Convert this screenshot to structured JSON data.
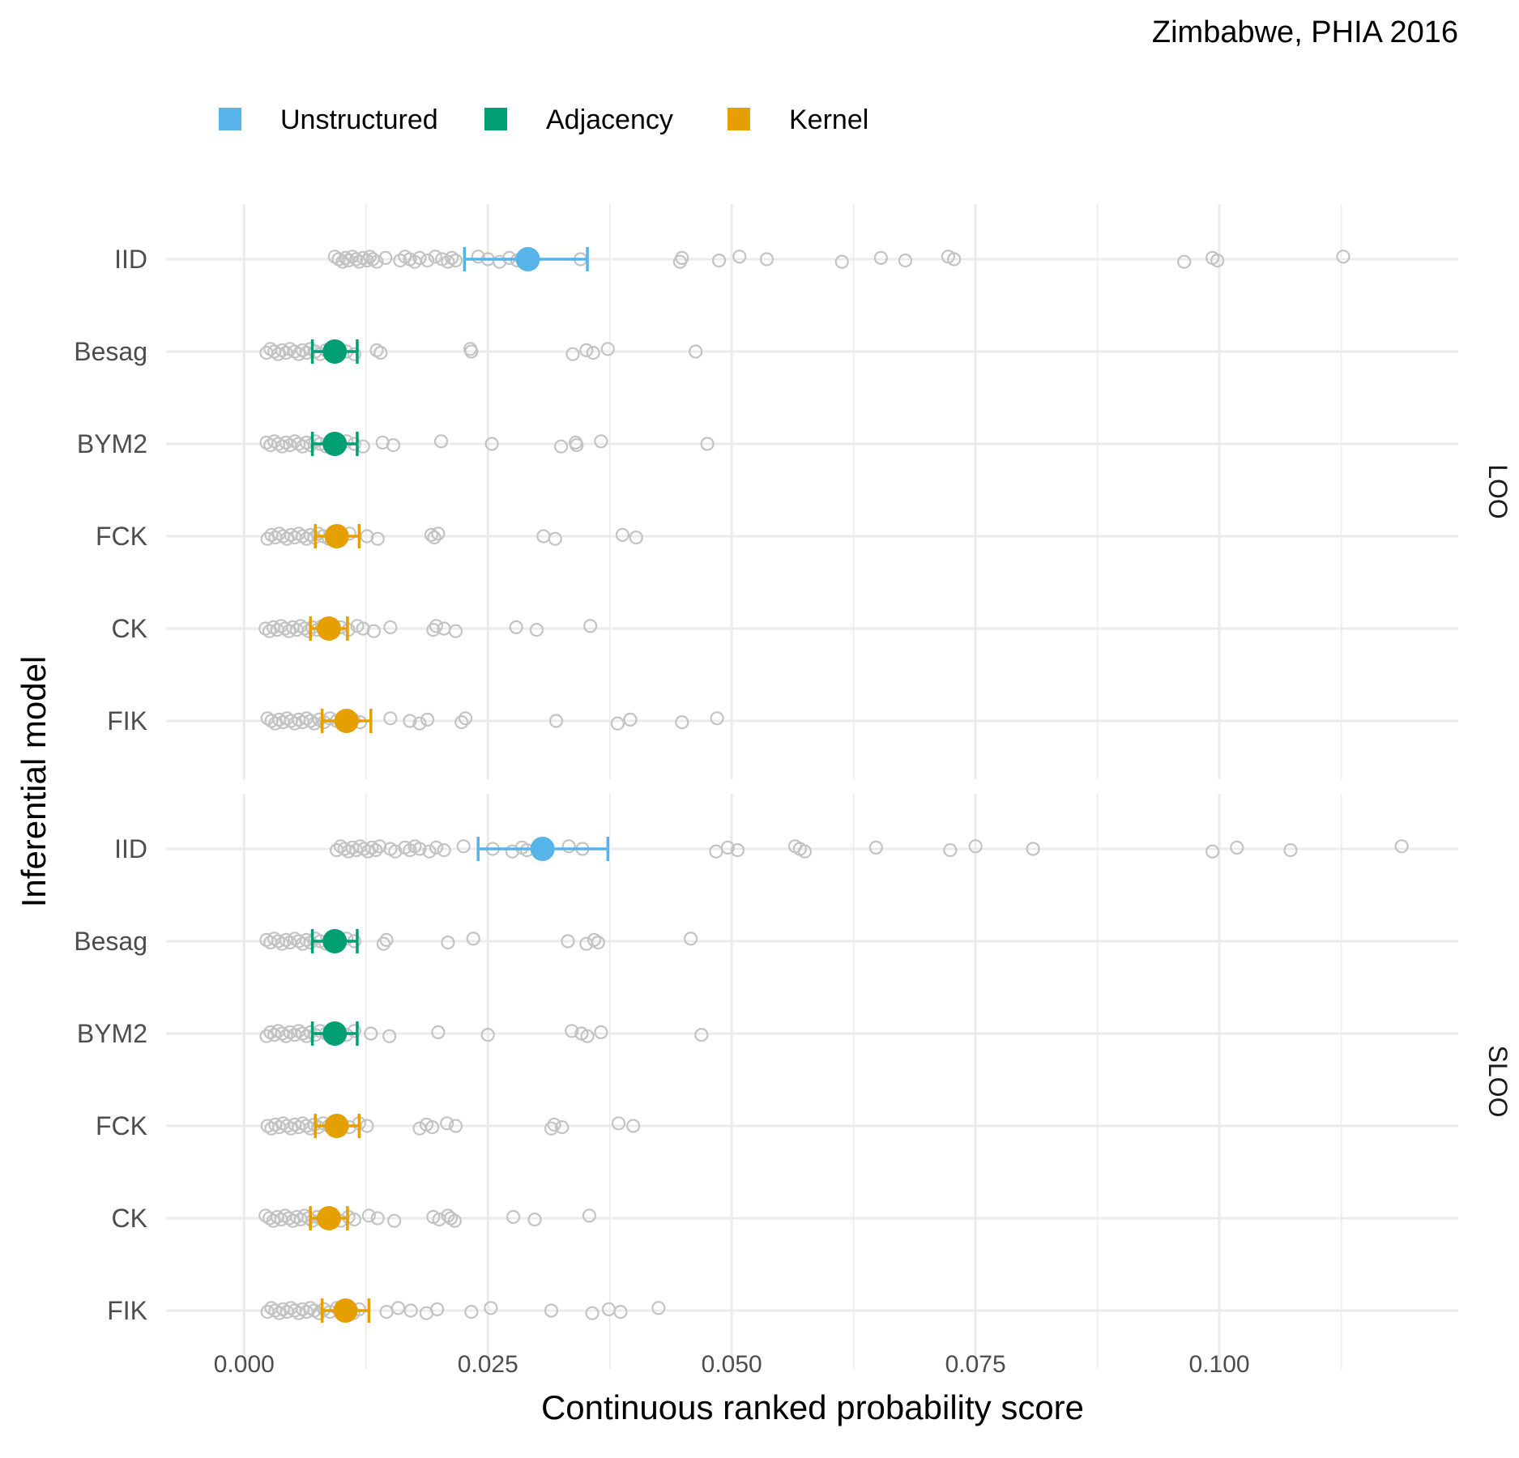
{
  "chart_data": {
    "type": "scatter",
    "title": "Zimbabwe, PHIA 2016",
    "xlabel": "Continuous ranked probability score",
    "ylabel": "Inferential model",
    "xlim": [
      -0.008,
      0.1245
    ],
    "x_ticks": [
      0.0,
      0.025,
      0.05,
      0.075,
      0.1
    ],
    "x_tick_labels": [
      "0.000",
      "0.025",
      "0.050",
      "0.075",
      "0.100"
    ],
    "categories": [
      "IID",
      "Besag",
      "BYM2",
      "FCK",
      "CK",
      "FIK"
    ],
    "panels": [
      "LOO",
      "SLOO"
    ],
    "grid": true,
    "legend_position": "top",
    "legend": [
      {
        "label": "Unstructured",
        "color": "#56B4E9"
      },
      {
        "label": "Adjacency",
        "color": "#009E73"
      },
      {
        "label": "Kernel",
        "color": "#E69F00"
      }
    ],
    "model_group": {
      "IID": 0,
      "Besag": 1,
      "BYM2": 1,
      "FCK": 2,
      "CK": 2,
      "FIK": 2
    },
    "point_color": "#c3c3c3",
    "series": [
      {
        "panel": "LOO",
        "model": "IID",
        "mean": 0.0291,
        "lower": 0.0226,
        "upper": 0.0352,
        "points": [
          0.0093,
          0.0097,
          0.0101,
          0.0104,
          0.0107,
          0.0111,
          0.0115,
          0.0118,
          0.0122,
          0.0126,
          0.0129,
          0.0132,
          0.0136,
          0.0145,
          0.016,
          0.0165,
          0.017,
          0.0175,
          0.018,
          0.0188,
          0.0196,
          0.0203,
          0.0209,
          0.0213,
          0.0217,
          0.024,
          0.025,
          0.0262,
          0.0272,
          0.028,
          0.029,
          0.0345,
          0.0447,
          0.0449,
          0.0487,
          0.0508,
          0.0536,
          0.0613,
          0.0653,
          0.0678,
          0.0722,
          0.0728,
          0.0964,
          0.0993,
          0.0998,
          0.1127
        ]
      },
      {
        "panel": "LOO",
        "model": "Besag",
        "mean": 0.0093,
        "lower": 0.007,
        "upper": 0.0116,
        "points": [
          0.0023,
          0.0027,
          0.0031,
          0.0035,
          0.0039,
          0.0043,
          0.0047,
          0.0052,
          0.0056,
          0.006,
          0.0064,
          0.0068,
          0.0073,
          0.0078,
          0.0084,
          0.009,
          0.0097,
          0.0105,
          0.0113,
          0.0136,
          0.014,
          0.0232,
          0.0233,
          0.0337,
          0.0351,
          0.0358,
          0.0373,
          0.0463
        ]
      },
      {
        "panel": "LOO",
        "model": "BYM2",
        "mean": 0.0093,
        "lower": 0.007,
        "upper": 0.0116,
        "points": [
          0.0023,
          0.0027,
          0.0031,
          0.0035,
          0.0039,
          0.0043,
          0.0047,
          0.0052,
          0.0056,
          0.006,
          0.0064,
          0.0068,
          0.0073,
          0.0078,
          0.0084,
          0.009,
          0.0097,
          0.0105,
          0.0113,
          0.0122,
          0.0142,
          0.0153,
          0.0202,
          0.0254,
          0.0325,
          0.034,
          0.0341,
          0.0366,
          0.0475
        ]
      },
      {
        "panel": "LOO",
        "model": "FCK",
        "mean": 0.0095,
        "lower": 0.0073,
        "upper": 0.0118,
        "points": [
          0.0024,
          0.0028,
          0.0032,
          0.0036,
          0.004,
          0.0044,
          0.0048,
          0.0052,
          0.0056,
          0.006,
          0.0064,
          0.0068,
          0.0072,
          0.0076,
          0.0081,
          0.0087,
          0.0093,
          0.01,
          0.0108,
          0.0126,
          0.0137,
          0.0192,
          0.0195,
          0.0199,
          0.0307,
          0.0319,
          0.0388,
          0.0402
        ]
      },
      {
        "panel": "LOO",
        "model": "CK",
        "mean": 0.0087,
        "lower": 0.0068,
        "upper": 0.0106,
        "points": [
          0.0022,
          0.0026,
          0.003,
          0.0034,
          0.0038,
          0.0042,
          0.0046,
          0.005,
          0.0054,
          0.0058,
          0.0062,
          0.0066,
          0.007,
          0.0075,
          0.008,
          0.0086,
          0.0092,
          0.0099,
          0.0107,
          0.0116,
          0.0122,
          0.0133,
          0.015,
          0.0194,
          0.0197,
          0.0205,
          0.0217,
          0.0279,
          0.03,
          0.0355
        ]
      },
      {
        "panel": "LOO",
        "model": "FIK",
        "mean": 0.0105,
        "lower": 0.008,
        "upper": 0.013,
        "points": [
          0.0024,
          0.0028,
          0.0032,
          0.0036,
          0.004,
          0.0044,
          0.0048,
          0.0052,
          0.0056,
          0.006,
          0.0064,
          0.0068,
          0.0072,
          0.0077,
          0.0082,
          0.0088,
          0.0095,
          0.0103,
          0.0112,
          0.0119,
          0.015,
          0.017,
          0.018,
          0.0188,
          0.0223,
          0.0227,
          0.032,
          0.0383,
          0.0396,
          0.0449,
          0.0485
        ]
      },
      {
        "panel": "SLOO",
        "model": "IID",
        "mean": 0.0306,
        "lower": 0.024,
        "upper": 0.0373,
        "points": [
          0.0095,
          0.0099,
          0.0103,
          0.0107,
          0.0111,
          0.0115,
          0.0119,
          0.0123,
          0.0127,
          0.0131,
          0.0135,
          0.0139,
          0.015,
          0.0155,
          0.0165,
          0.017,
          0.0175,
          0.018,
          0.019,
          0.0197,
          0.0205,
          0.0225,
          0.0255,
          0.0275,
          0.0285,
          0.029,
          0.0333,
          0.0347,
          0.0484,
          0.0496,
          0.0506,
          0.0565,
          0.057,
          0.0575,
          0.0648,
          0.0724,
          0.075,
          0.0809,
          0.0993,
          0.1018,
          0.1073,
          0.1187
        ]
      },
      {
        "panel": "SLOO",
        "model": "Besag",
        "mean": 0.0093,
        "lower": 0.007,
        "upper": 0.0116,
        "points": [
          0.0023,
          0.0027,
          0.0031,
          0.0035,
          0.0039,
          0.0043,
          0.0047,
          0.0052,
          0.0056,
          0.006,
          0.0064,
          0.0068,
          0.0073,
          0.0078,
          0.0084,
          0.009,
          0.0097,
          0.0105,
          0.0113,
          0.0143,
          0.0146,
          0.0209,
          0.0235,
          0.0332,
          0.0351,
          0.0359,
          0.0363,
          0.0458
        ]
      },
      {
        "panel": "SLOO",
        "model": "BYM2",
        "mean": 0.0093,
        "lower": 0.007,
        "upper": 0.0116,
        "points": [
          0.0023,
          0.0027,
          0.0031,
          0.0035,
          0.0039,
          0.0043,
          0.0047,
          0.0052,
          0.0056,
          0.006,
          0.0064,
          0.0068,
          0.0073,
          0.0078,
          0.0084,
          0.009,
          0.0097,
          0.0105,
          0.0113,
          0.013,
          0.0149,
          0.0199,
          0.025,
          0.0336,
          0.0346,
          0.0352,
          0.0366,
          0.0469
        ]
      },
      {
        "panel": "SLOO",
        "model": "FCK",
        "mean": 0.0095,
        "lower": 0.0073,
        "upper": 0.0118,
        "points": [
          0.0024,
          0.0028,
          0.0032,
          0.0036,
          0.004,
          0.0044,
          0.0048,
          0.0052,
          0.0056,
          0.006,
          0.0064,
          0.0068,
          0.0072,
          0.0076,
          0.0081,
          0.0087,
          0.0093,
          0.01,
          0.0108,
          0.0118,
          0.0126,
          0.018,
          0.0187,
          0.0193,
          0.0208,
          0.0217,
          0.0315,
          0.0318,
          0.0326,
          0.0384,
          0.0399
        ]
      },
      {
        "panel": "SLOO",
        "model": "CK",
        "mean": 0.0087,
        "lower": 0.0068,
        "upper": 0.0106,
        "points": [
          0.0022,
          0.0026,
          0.003,
          0.0034,
          0.0038,
          0.0042,
          0.0046,
          0.005,
          0.0054,
          0.0058,
          0.0062,
          0.0066,
          0.007,
          0.0075,
          0.008,
          0.0086,
          0.0092,
          0.0099,
          0.0107,
          0.0113,
          0.0128,
          0.0137,
          0.0154,
          0.0194,
          0.02,
          0.0209,
          0.0212,
          0.0216,
          0.0276,
          0.0298,
          0.0354
        ]
      },
      {
        "panel": "SLOO",
        "model": "FIK",
        "mean": 0.0104,
        "lower": 0.008,
        "upper": 0.0128,
        "points": [
          0.0024,
          0.0028,
          0.0032,
          0.0036,
          0.004,
          0.0044,
          0.0048,
          0.0052,
          0.0056,
          0.006,
          0.0064,
          0.0068,
          0.0072,
          0.0077,
          0.0082,
          0.0088,
          0.0095,
          0.0103,
          0.0112,
          0.0118,
          0.0146,
          0.0158,
          0.0171,
          0.0187,
          0.0198,
          0.0233,
          0.0253,
          0.0315,
          0.0357,
          0.0374,
          0.0386,
          0.0425
        ]
      }
    ]
  }
}
